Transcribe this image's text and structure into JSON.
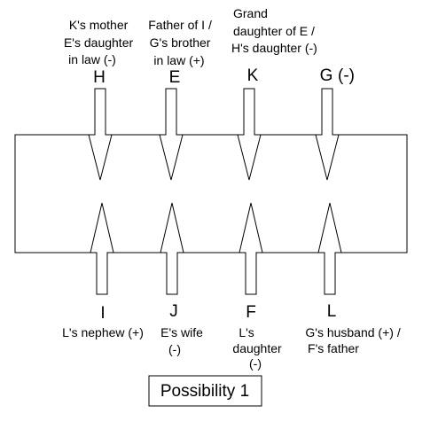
{
  "caption": "Possibility 1",
  "top_people": [
    {
      "letter": "H",
      "note_lines": [
        "K's mother",
        "E's daughter",
        "in law (-)"
      ]
    },
    {
      "letter": "E",
      "note_lines": [
        "Father of I /",
        "G's brother",
        "in law (+)"
      ]
    },
    {
      "letter": "K",
      "note_lines": [
        "Grand",
        "daughter of E /",
        "H's daughter (-)"
      ]
    },
    {
      "letter": "G",
      "suffix": "(-)",
      "note_lines": []
    }
  ],
  "bottom_people": [
    {
      "letter": "I",
      "note_lines": [
        "L's nephew (+)"
      ]
    },
    {
      "letter": "J",
      "note_lines": [
        "E's wife",
        "(-)"
      ]
    },
    {
      "letter": "F",
      "note_lines": [
        "L's",
        "daughter",
        "(-)"
      ]
    },
    {
      "letter": "L",
      "note_lines": [
        "G's husband (+) /",
        "F's father"
      ]
    }
  ]
}
